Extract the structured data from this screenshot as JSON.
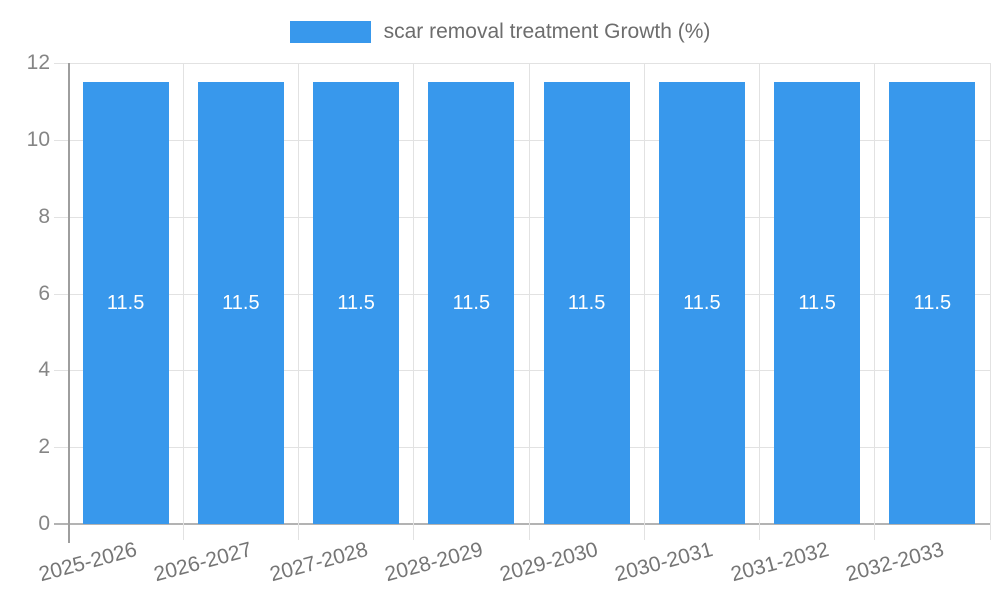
{
  "legend": {
    "label": "scar removal treatment Growth (%)"
  },
  "chart_data": {
    "type": "bar",
    "title": "scar removal treatment Growth (%)",
    "categories": [
      "2025-2026",
      "2026-2027",
      "2027-2028",
      "2028-2029",
      "2029-2030",
      "2030-2031",
      "2031-2032",
      "2032-2033"
    ],
    "values": [
      11.5,
      11.5,
      11.5,
      11.5,
      11.5,
      11.5,
      11.5,
      11.5
    ],
    "value_labels": [
      "11.5",
      "11.5",
      "11.5",
      "11.5",
      "11.5",
      "11.5",
      "11.5",
      "11.5"
    ],
    "xlabel": "",
    "ylabel": "",
    "ylim": [
      0,
      12
    ],
    "yticks": [
      0,
      2,
      4,
      6,
      8,
      10,
      12
    ],
    "grid": true,
    "legend_position": "top",
    "bar_color": "#3898EC",
    "value_label_color": "#ffffff",
    "x_label_rotation_deg": -15
  }
}
